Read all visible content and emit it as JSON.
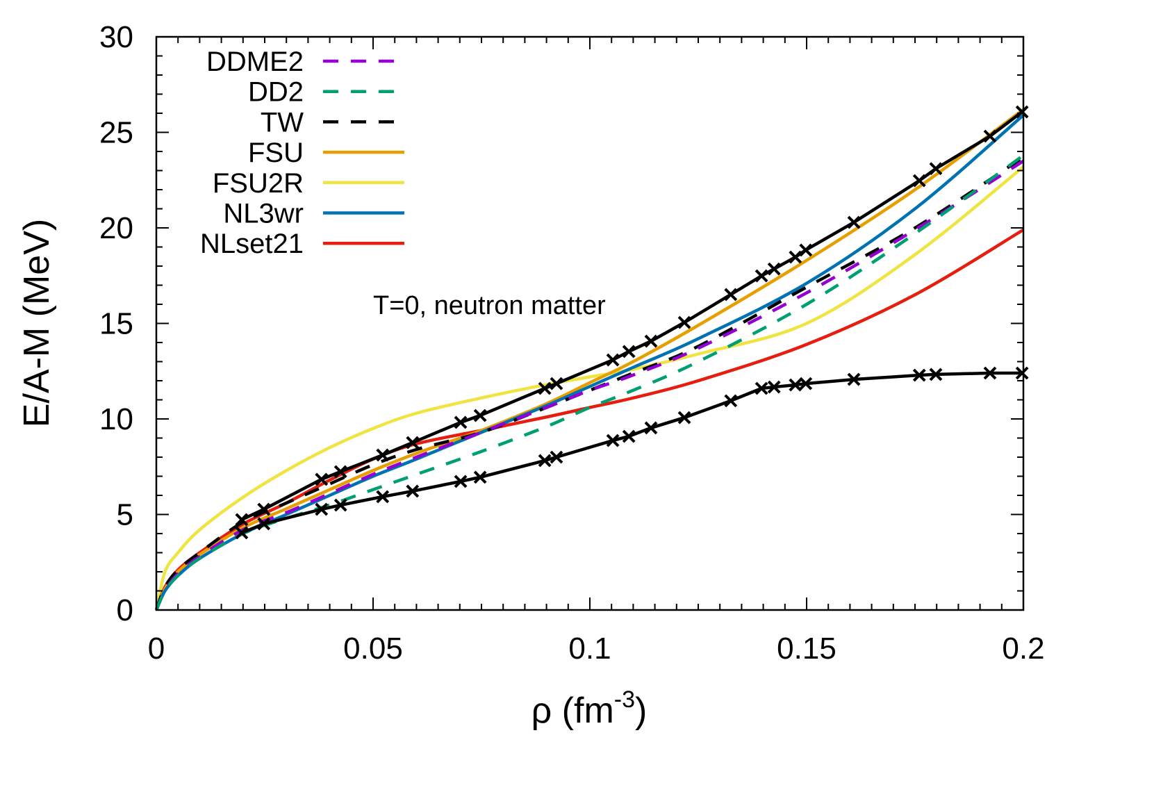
{
  "chart_data": {
    "type": "line",
    "xlabel": "ρ (fm",
    "xlabel_sup": "-3",
    "xlabel_close": ")",
    "ylabel": "E/A-M (MeV)",
    "xlim": [
      0,
      0.2
    ],
    "ylim": [
      0,
      30
    ],
    "xticks": [
      "0",
      "0.05",
      "0.1",
      "0.15",
      "0.2"
    ],
    "xtick_values": [
      0,
      0.05,
      0.1,
      0.15,
      0.2
    ],
    "yticks": [
      "0",
      "5",
      "10",
      "15",
      "20",
      "25",
      "30"
    ],
    "ytick_values": [
      0,
      5,
      10,
      15,
      20,
      25,
      30
    ],
    "grid": false,
    "legend_placement": "top-left",
    "annotation": "T=0, neutron matter",
    "series": [
      {
        "name": "DDME2",
        "color": "#9400d3",
        "dash": true,
        "x": [
          0,
          0.002,
          0.005,
          0.01,
          0.02,
          0.03,
          0.04,
          0.05,
          0.06,
          0.075,
          0.09,
          0.1,
          0.11,
          0.125,
          0.15,
          0.175,
          0.2
        ],
        "y": [
          0,
          1.0,
          1.9,
          2.8,
          4.2,
          5.1,
          6.1,
          7.1,
          8.0,
          9.3,
          10.6,
          11.5,
          12.3,
          13.7,
          16.6,
          19.9,
          23.5
        ]
      },
      {
        "name": "DD2",
        "color": "#009e73",
        "dash": true,
        "x": [
          0,
          0.002,
          0.005,
          0.01,
          0.02,
          0.03,
          0.04,
          0.05,
          0.06,
          0.075,
          0.09,
          0.1,
          0.11,
          0.125,
          0.15,
          0.175,
          0.2
        ],
        "y": [
          0,
          1.0,
          1.8,
          2.7,
          4.0,
          4.8,
          5.5,
          6.3,
          7.1,
          8.3,
          9.6,
          10.6,
          11.5,
          13.0,
          16.0,
          19.7,
          23.8
        ]
      },
      {
        "name": "TW",
        "color": "#000000",
        "dash": true,
        "x": [
          0,
          0.002,
          0.005,
          0.01,
          0.02,
          0.03,
          0.04,
          0.05,
          0.06,
          0.075,
          0.09,
          0.1,
          0.11,
          0.125,
          0.15,
          0.175,
          0.2
        ],
        "y": [
          0,
          1.2,
          2.1,
          3.0,
          4.6,
          5.6,
          6.6,
          7.6,
          8.4,
          9.3,
          10.6,
          11.5,
          12.4,
          13.8,
          16.9,
          20.0,
          23.7
        ]
      },
      {
        "name": "FSU",
        "color": "#e69f00",
        "dash": false,
        "x": [
          0,
          0.002,
          0.005,
          0.01,
          0.02,
          0.03,
          0.04,
          0.05,
          0.06,
          0.075,
          0.09,
          0.1,
          0.11,
          0.125,
          0.15,
          0.175,
          0.2
        ],
        "y": [
          0,
          1.1,
          2.0,
          2.9,
          4.3,
          5.3,
          6.3,
          7.3,
          8.2,
          9.4,
          10.8,
          11.9,
          13.0,
          14.9,
          18.3,
          22.0,
          26.2
        ]
      },
      {
        "name": "FSU2R",
        "color": "#f0e442",
        "dash": false,
        "x": [
          0,
          0.002,
          0.005,
          0.01,
          0.02,
          0.03,
          0.04,
          0.05,
          0.06,
          0.075,
          0.09,
          0.1,
          0.11,
          0.125,
          0.15,
          0.175,
          0.2
        ],
        "y": [
          0,
          2.0,
          3.0,
          4.2,
          5.9,
          7.3,
          8.5,
          9.5,
          10.3,
          11.1,
          11.8,
          12.2,
          12.6,
          13.4,
          15.0,
          18.6,
          23.2
        ]
      },
      {
        "name": "NL3wr",
        "color": "#0072b2",
        "dash": false,
        "x": [
          0,
          0.002,
          0.005,
          0.01,
          0.02,
          0.03,
          0.04,
          0.05,
          0.06,
          0.075,
          0.09,
          0.1,
          0.11,
          0.125,
          0.15,
          0.175,
          0.2
        ],
        "y": [
          0,
          1.0,
          1.8,
          2.7,
          4.0,
          5.0,
          6.0,
          7.0,
          7.9,
          9.3,
          10.7,
          11.7,
          12.7,
          14.2,
          17.1,
          21.0,
          25.9
        ]
      },
      {
        "name": "NLset21",
        "color": "#e51e10",
        "dash": false,
        "x": [
          0,
          0.002,
          0.005,
          0.01,
          0.02,
          0.03,
          0.04,
          0.05,
          0.06,
          0.075,
          0.09,
          0.1,
          0.11,
          0.125,
          0.15,
          0.175,
          0.2
        ],
        "y": [
          0,
          1.2,
          2.1,
          3.0,
          4.5,
          5.6,
          6.8,
          7.9,
          8.7,
          9.4,
          10.1,
          10.6,
          11.1,
          12.0,
          13.9,
          16.5,
          19.9
        ]
      },
      {
        "color": "#000000",
        "dash": false,
        "markers": "cross",
        "x": [
          0.0197,
          0.0248,
          0.0381,
          0.0425,
          0.0522,
          0.0591,
          0.0702,
          0.0747,
          0.0896,
          0.0923,
          0.1053,
          0.109,
          0.1141,
          0.1218,
          0.1325,
          0.1396,
          0.1425,
          0.1474,
          0.1498,
          0.1609,
          0.176,
          0.1798,
          0.1923,
          0.1997
        ],
        "y": [
          4.73,
          5.27,
          6.84,
          7.24,
          8.11,
          8.76,
          9.82,
          10.18,
          11.6,
          11.85,
          13.09,
          13.53,
          14.07,
          15.05,
          16.51,
          17.49,
          17.85,
          18.47,
          18.84,
          20.29,
          22.47,
          23.1,
          24.8,
          26.07
        ]
      },
      {
        "color": "#000000",
        "dash": false,
        "markers": "cross",
        "x": [
          0.0197,
          0.0248,
          0.0381,
          0.0425,
          0.0522,
          0.0591,
          0.0702,
          0.0747,
          0.0896,
          0.0923,
          0.1053,
          0.109,
          0.1141,
          0.1218,
          0.1325,
          0.1396,
          0.1425,
          0.1474,
          0.1498,
          0.1609,
          0.176,
          0.1798,
          0.1923,
          0.1997
        ],
        "y": [
          4.04,
          4.51,
          5.27,
          5.49,
          5.93,
          6.22,
          6.73,
          6.95,
          7.82,
          8.0,
          8.87,
          9.09,
          9.53,
          10.07,
          10.95,
          11.6,
          11.67,
          11.78,
          11.85,
          12.07,
          12.29,
          12.33,
          12.4,
          12.4
        ]
      }
    ]
  }
}
